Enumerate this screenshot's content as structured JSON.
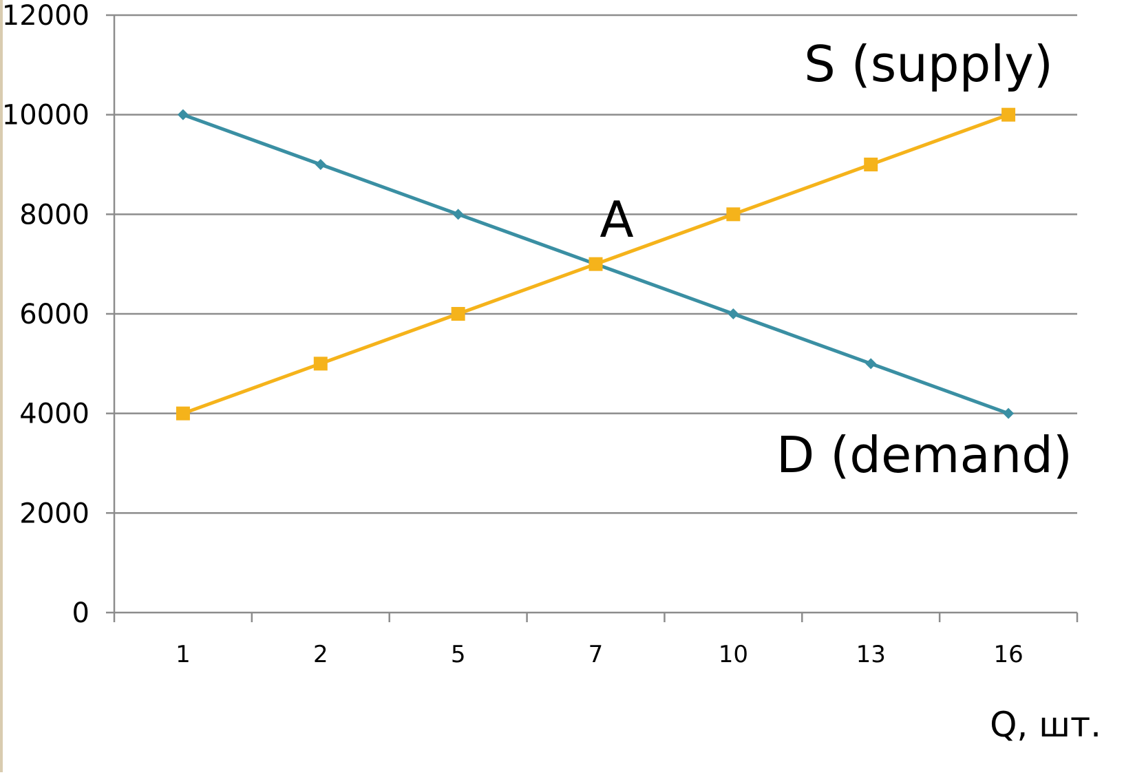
{
  "chart_data": {
    "type": "line",
    "categories": [
      "1",
      "2",
      "5",
      "7",
      "10",
      "13",
      "16"
    ],
    "series": [
      {
        "name": "D (demand)",
        "values": [
          10000,
          9000,
          8000,
          7000,
          6000,
          5000,
          4000
        ],
        "color": "#3a8fa3",
        "marker": "diamond"
      },
      {
        "name": "S (supply)",
        "values": [
          4000,
          5000,
          6000,
          7000,
          8000,
          9000,
          10000
        ],
        "color": "#f5b31b",
        "marker": "square"
      }
    ],
    "yticks": [
      "0",
      "2000",
      "4000",
      "6000",
      "8000",
      "10000",
      "12000"
    ],
    "ylim": [
      0,
      12000
    ],
    "grid": true,
    "xlabel": "Q, шт.",
    "ylabel": "",
    "title": "",
    "annotations": {
      "supply": "S (supply)",
      "demand": "D (demand)",
      "equilibrium": "A"
    }
  }
}
